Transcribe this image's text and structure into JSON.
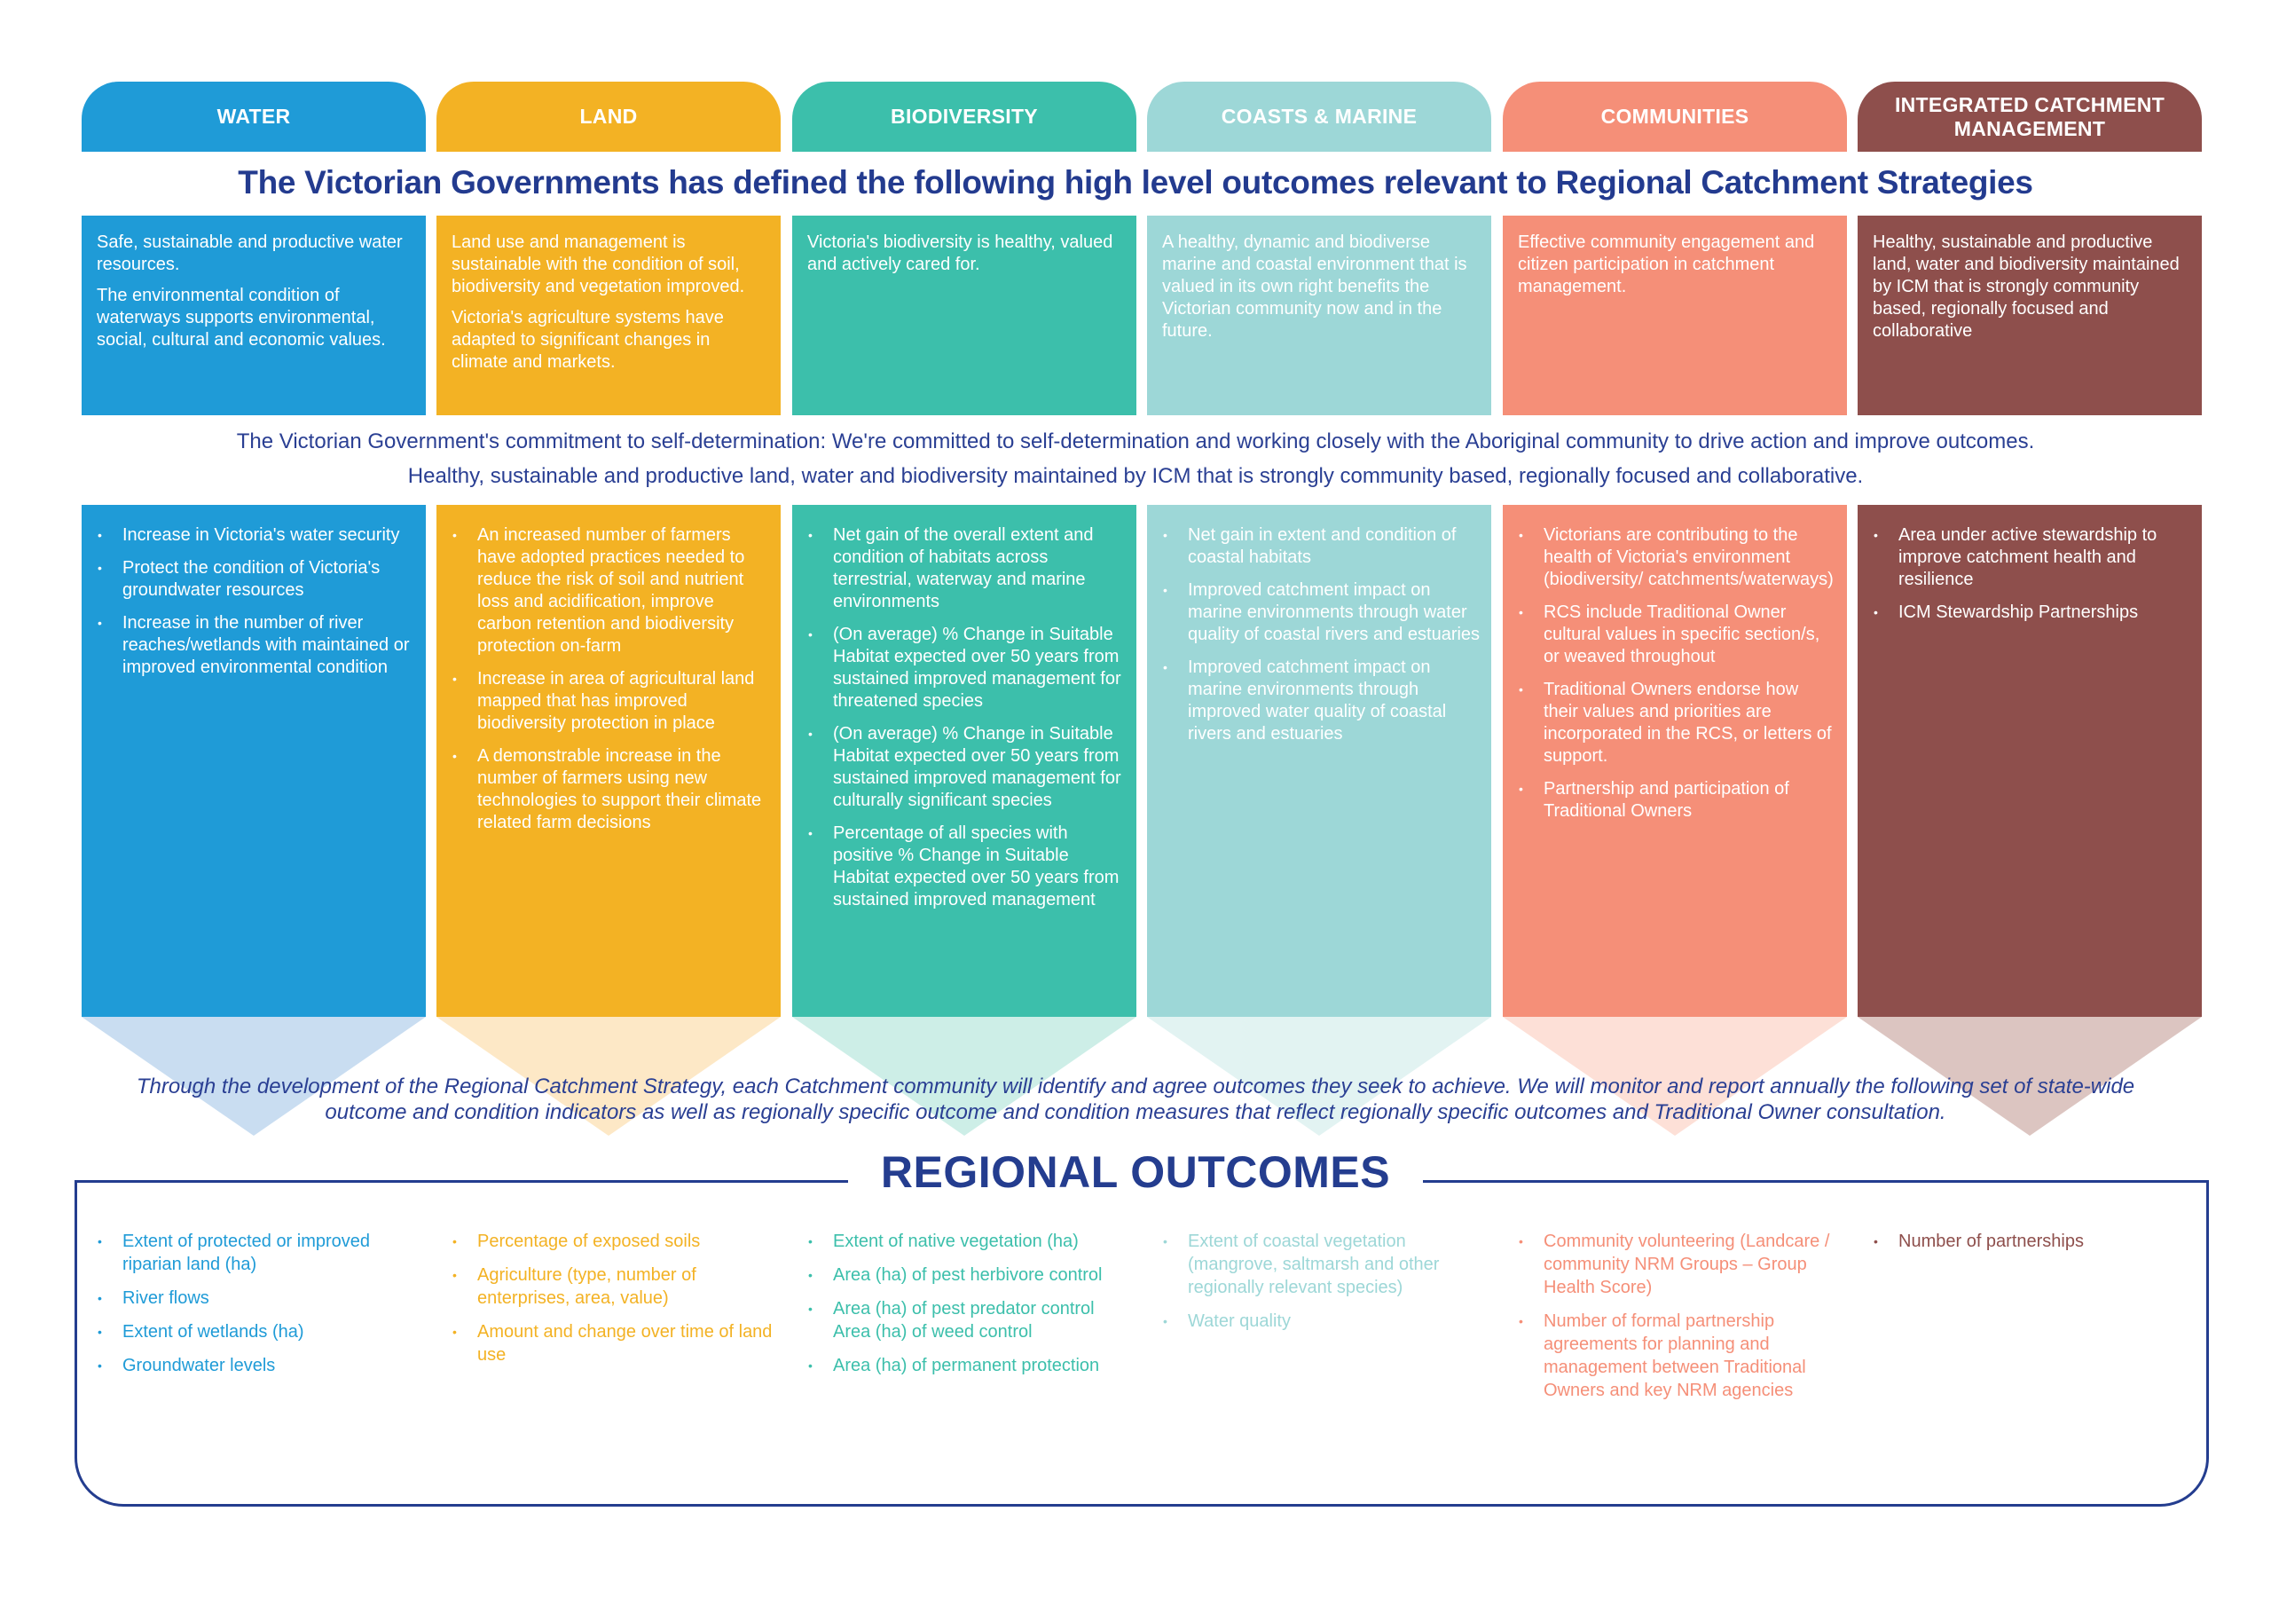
{
  "title": "The Victorian Governments has defined the following high level outcomes relevant to Regional Catchment Strategies",
  "commitment_lines": [
    "The Victorian Government's commitment to self-determination: We're committed to self-determination and working closely with the Aboriginal community to drive action and improve outcomes.",
    "Healthy, sustainable and productive land, water and biodiversity maintained by ICM that is strongly community based, regionally focused and collaborative."
  ],
  "monitoring_text": "Through the development of the Regional Catchment Strategy, each Catchment community will identify and agree outcomes they seek to achieve. We will monitor and report annually the following set of state-wide outcome and condition indicators as well as regionally specific outcome and condition measures that reflect regionally specific outcomes and Traditional Owner consultation.",
  "regional_title": "REGIONAL OUTCOMES",
  "columns": [
    {
      "key": "water",
      "label": "WATER",
      "color": "#1f9bd7",
      "tint": "#c9ddf1",
      "vision": [
        "Safe, sustainable and productive water resources.",
        "The environmental condition of waterways supports environmental, social, cultural and economic values."
      ],
      "outcomes": [
        "Increase in Victoria's water security",
        "Protect the condition of Victoria's groundwater resources",
        "Increase in the number of river reaches/wetlands with maintained or improved environmental condition"
      ],
      "regional": [
        "Extent of protected or improved riparian land (ha)",
        "River flows",
        "Extent of wetlands (ha)",
        "Groundwater levels"
      ]
    },
    {
      "key": "land",
      "label": "LAND",
      "color": "#f3b224",
      "tint": "#fde8c6",
      "vision": [
        "Land use and management is sustainable with the condition of soil, biodiversity and vegetation improved.",
        "Victoria's agriculture systems have adapted to significant changes in climate and markets."
      ],
      "outcomes": [
        "An increased number of farmers have adopted practices needed to reduce the risk of soil and nutrient loss and acidification, improve carbon retention and biodiversity protection on-farm",
        "Increase in area of agricultural land mapped that has improved biodiversity protection in place",
        "A demonstrable increase in the number of farmers using new technologies to support their climate related farm decisions"
      ],
      "regional": [
        "Percentage of exposed soils",
        "Agriculture (type, number of enterprises, area, value)",
        "Amount and change over time of land use"
      ]
    },
    {
      "key": "biodiversity",
      "label": "BIODIVERSITY",
      "color": "#3cbfab",
      "tint": "#cdeee7",
      "vision": [
        "Victoria's biodiversity is healthy, valued and actively cared for."
      ],
      "outcomes": [
        "Net gain of the overall extent and condition of habitats across terrestrial, waterway and marine environments",
        "(On average) % Change in Suitable Habitat expected over 50 years from sustained improved management for threatened species",
        "(On average) % Change in Suitable Habitat expected over 50 years from sustained improved management for culturally significant species",
        "Percentage of all species with positive % Change in Suitable Habitat expected over 50 years from sustained improved management"
      ],
      "regional": [
        "Extent of native vegetation (ha)",
        "Area (ha) of pest herbivore control",
        "Area (ha) of pest predator control Area (ha) of weed control",
        "Area (ha) of permanent protection"
      ]
    },
    {
      "key": "coasts",
      "label": "COASTS & MARINE",
      "color": "#9dd7d7",
      "tint": "#e2f3f2",
      "vision": [
        "A healthy, dynamic and biodiverse marine and coastal environment that is valued in its own right benefits the Victorian community now and in the future."
      ],
      "outcomes": [
        "Net gain in extent and condition of coastal habitats",
        "Improved catchment impact on marine environments through water quality of coastal rivers and estuaries",
        "Improved catchment impact on marine environments through improved water quality of coastal rivers and estuaries"
      ],
      "regional": [
        "Extent of coastal vegetation (mangrove, saltmarsh and other regionally relevant species)",
        "Water quality"
      ]
    },
    {
      "key": "communities",
      "label": "COMMUNITIES",
      "color": "#f58f78",
      "tint": "#fde0d7",
      "vision": [
        "Effective community engagement and citizen participation in catchment management."
      ],
      "outcomes": [
        "Victorians are contributing to the health of Victoria's environment (biodiversity/ catchments/waterways)",
        "RCS include Traditional Owner cultural values in specific section/s, or weaved throughout",
        "Traditional Owners endorse how their values and priorities are incorporated in the RCS, or letters of support.",
        "Partnership and participation of Traditional Owners"
      ],
      "regional": [
        "Community volunteering (Landcare / community NRM Groups – Group Health Score)",
        "Number of formal partnership agreements for planning and management between Traditional Owners and key NRM agencies"
      ]
    },
    {
      "key": "icm",
      "label": "INTEGRATED CATCHMENT MANAGEMENT",
      "color": "#8e4f4c",
      "tint": "#dcc5c1",
      "vision": [
        "Healthy, sustainable and productive land, water and biodiversity maintained by ICM that is strongly community based, regionally focused and collaborative"
      ],
      "outcomes": [
        "Area under active stewardship to improve catchment health and resilience",
        "ICM Stewardship Partnerships"
      ],
      "regional": [
        "Number of partnerships"
      ]
    }
  ]
}
